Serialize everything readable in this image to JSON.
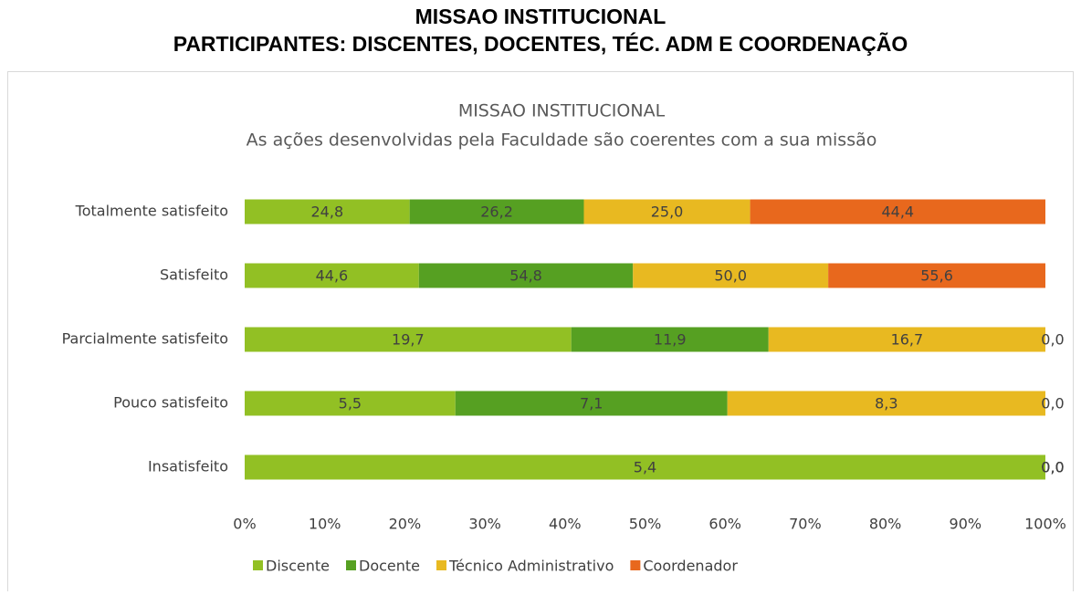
{
  "page_title": [
    "MISSAO INSTITUCIONAL",
    "PARTICIPANTES: DISCENTES, DOCENTES, TÉC. ADM E COORDENAÇÃO"
  ],
  "chart_data": {
    "type": "bar",
    "orientation": "horizontal",
    "stack": "percent",
    "title": "MISSAO INSTITUCIONAL",
    "subtitle": "As ações desenvolvidas pela Faculdade são coerentes com a sua missão",
    "categories": [
      "Totalmente satisfeito",
      "Satisfeito",
      "Parcialmente satisfeito",
      "Pouco satisfeito",
      "Insatisfeito"
    ],
    "series": [
      {
        "name": "Discente",
        "color": "#92c024",
        "values": [
          24.8,
          44.6,
          19.7,
          5.5,
          5.4
        ],
        "value_labels": [
          "24,8",
          "44,6",
          "19,7",
          "5,5",
          "5,4"
        ]
      },
      {
        "name": "Docente",
        "color": "#56a022",
        "values": [
          26.2,
          54.8,
          11.9,
          7.1,
          0
        ],
        "value_labels": [
          "26,2",
          "54,8",
          "11,9",
          "7,1",
          "0,0"
        ]
      },
      {
        "name": "Técnico Administrativo",
        "color": "#e8b921",
        "values": [
          25.0,
          50.0,
          16.7,
          8.3,
          0
        ],
        "value_labels": [
          "25,0",
          "50,0",
          "16,7",
          "8,3",
          "0,0"
        ]
      },
      {
        "name": "Coordenador",
        "color": "#e8681d",
        "values": [
          44.4,
          55.6,
          0,
          0,
          0
        ],
        "value_labels": [
          "44,4",
          "55,6",
          "0,0",
          "0,0",
          "0,0"
        ]
      }
    ],
    "xlim": [
      0,
      100
    ],
    "xticks": [
      {
        "value": 0,
        "label": "0%"
      },
      {
        "value": 10,
        "label": "10%"
      },
      {
        "value": 20,
        "label": "20%"
      },
      {
        "value": 30,
        "label": "30%"
      },
      {
        "value": 40,
        "label": "40%"
      },
      {
        "value": 50,
        "label": "50%"
      },
      {
        "value": 60,
        "label": "60%"
      },
      {
        "value": 70,
        "label": "70%"
      },
      {
        "value": 80,
        "label": "80%"
      },
      {
        "value": 90,
        "label": "90%"
      },
      {
        "value": 100,
        "label": "100%"
      }
    ],
    "legend": "bottom"
  }
}
